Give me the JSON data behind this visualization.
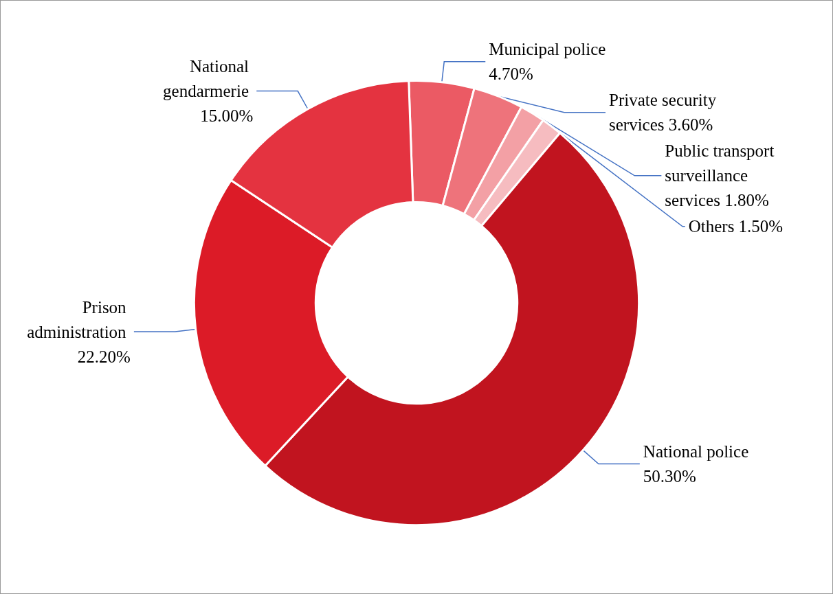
{
  "chart_data": {
    "type": "donut",
    "categories": [
      "Municipal police",
      "Private security services",
      "Public transport surveillance services",
      "Others",
      "National police",
      "Prison administration",
      "National gendarmerie"
    ],
    "values": [
      4.7,
      3.6,
      1.8,
      1.5,
      50.3,
      22.2,
      15.0
    ],
    "value_labels": [
      "4.70%",
      "3.60%",
      "1.80%",
      "1.50%",
      "50.30%",
      "22.20%",
      "15.00%"
    ],
    "colors": [
      "#eb5a64",
      "#ee737b",
      "#f3a0a5",
      "#f6bcc0",
      "#c1141f",
      "#dc1b27",
      "#e43340"
    ],
    "legend": false
  }
}
